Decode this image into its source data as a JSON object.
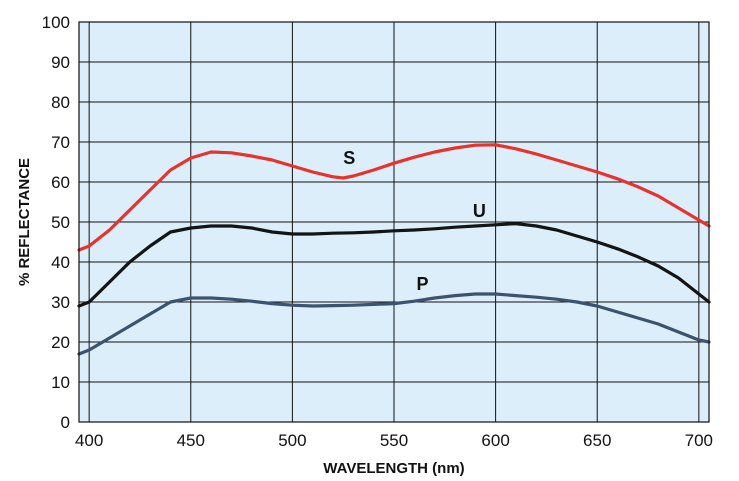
{
  "chart_data": {
    "type": "line",
    "xlabel": "WAVELENGTH (nm)",
    "ylabel": "% REFLECTANCE",
    "xlim": [
      395,
      705
    ],
    "ylim": [
      0,
      100
    ],
    "x_ticks": [
      400,
      450,
      500,
      550,
      600,
      650,
      700
    ],
    "y_ticks": [
      0,
      10,
      20,
      30,
      40,
      50,
      60,
      70,
      80,
      90,
      100
    ],
    "grid": true,
    "legend": "none",
    "plot_background": "#dceefa",
    "grid_color": "#111111",
    "series": [
      {
        "name": "S",
        "color": "#e8322b",
        "points": [
          [
            395,
            43
          ],
          [
            400,
            44
          ],
          [
            410,
            48
          ],
          [
            420,
            53
          ],
          [
            430,
            58
          ],
          [
            440,
            63
          ],
          [
            450,
            66
          ],
          [
            460,
            67.5
          ],
          [
            470,
            67.3
          ],
          [
            480,
            66.5
          ],
          [
            490,
            65.5
          ],
          [
            500,
            64
          ],
          [
            510,
            62.5
          ],
          [
            520,
            61.3
          ],
          [
            525,
            61
          ],
          [
            530,
            61.5
          ],
          [
            540,
            63
          ],
          [
            550,
            64.7
          ],
          [
            560,
            66.2
          ],
          [
            570,
            67.5
          ],
          [
            580,
            68.5
          ],
          [
            590,
            69.2
          ],
          [
            600,
            69.3
          ],
          [
            610,
            68.3
          ],
          [
            620,
            67
          ],
          [
            630,
            65.5
          ],
          [
            640,
            64
          ],
          [
            650,
            62.5
          ],
          [
            660,
            60.8
          ],
          [
            670,
            58.8
          ],
          [
            680,
            56.5
          ],
          [
            690,
            53.5
          ],
          [
            700,
            50.5
          ],
          [
            705,
            49
          ]
        ]
      },
      {
        "name": "U",
        "color": "#141414",
        "points": [
          [
            395,
            29
          ],
          [
            400,
            30
          ],
          [
            410,
            35
          ],
          [
            420,
            40
          ],
          [
            430,
            44
          ],
          [
            440,
            47.5
          ],
          [
            450,
            48.5
          ],
          [
            460,
            49
          ],
          [
            470,
            49
          ],
          [
            480,
            48.5
          ],
          [
            490,
            47.5
          ],
          [
            500,
            47
          ],
          [
            510,
            47
          ],
          [
            520,
            47.2
          ],
          [
            530,
            47.3
          ],
          [
            540,
            47.5
          ],
          [
            550,
            47.8
          ],
          [
            560,
            48
          ],
          [
            570,
            48.3
          ],
          [
            580,
            48.7
          ],
          [
            590,
            49
          ],
          [
            600,
            49.3
          ],
          [
            610,
            49.6
          ],
          [
            620,
            49
          ],
          [
            630,
            48
          ],
          [
            640,
            46.5
          ],
          [
            650,
            45
          ],
          [
            660,
            43.3
          ],
          [
            670,
            41.3
          ],
          [
            680,
            39
          ],
          [
            690,
            36
          ],
          [
            700,
            32
          ],
          [
            705,
            30
          ]
        ]
      },
      {
        "name": "P",
        "color": "#3b536e",
        "points": [
          [
            395,
            17
          ],
          [
            400,
            18
          ],
          [
            410,
            21
          ],
          [
            420,
            24
          ],
          [
            430,
            27
          ],
          [
            440,
            30
          ],
          [
            450,
            31
          ],
          [
            460,
            31
          ],
          [
            470,
            30.7
          ],
          [
            480,
            30.2
          ],
          [
            490,
            29.6
          ],
          [
            500,
            29.2
          ],
          [
            510,
            29
          ],
          [
            520,
            29.1
          ],
          [
            530,
            29.2
          ],
          [
            540,
            29.4
          ],
          [
            550,
            29.6
          ],
          [
            560,
            30.2
          ],
          [
            570,
            31
          ],
          [
            580,
            31.6
          ],
          [
            590,
            32
          ],
          [
            600,
            32
          ],
          [
            610,
            31.6
          ],
          [
            620,
            31.2
          ],
          [
            630,
            30.7
          ],
          [
            640,
            30
          ],
          [
            650,
            29
          ],
          [
            660,
            27.5
          ],
          [
            670,
            26
          ],
          [
            680,
            24.5
          ],
          [
            690,
            22.5
          ],
          [
            700,
            20.5
          ],
          [
            705,
            20
          ]
        ]
      }
    ],
    "annotations": [
      {
        "text": "S",
        "x": 528,
        "y": 66
      },
      {
        "text": "U",
        "x": 592,
        "y": 52.8
      },
      {
        "text": "P",
        "x": 564,
        "y": 34.5
      }
    ]
  }
}
